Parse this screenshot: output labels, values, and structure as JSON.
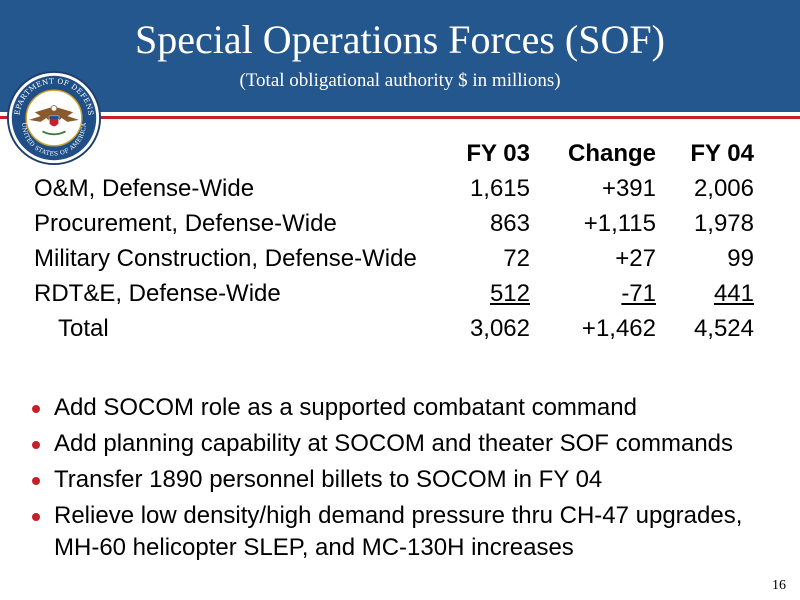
{
  "header": {
    "title": "Special Operations Forces (SOF)",
    "subtitle": "(Total obligational authority $ in millions)",
    "bg_color": "#25578f",
    "accent_line_color": "#c8202a"
  },
  "seal": {
    "icon": "department-of-defense-seal",
    "top_text": "DEPARTMENT OF DEFENSE",
    "bottom_text": "UNITED STATES OF AMERICA"
  },
  "table": {
    "columns": [
      "FY 03",
      "Change",
      "FY 04"
    ],
    "rows": [
      {
        "label": "O&M, Defense-Wide",
        "fy03": "1,615",
        "change": "+391",
        "fy04": "2,006"
      },
      {
        "label": "Procurement, Defense-Wide",
        "fy03": "863",
        "change": "+1,115",
        "fy04": "1,978"
      },
      {
        "label": "Military Construction, Defense-Wide",
        "fy03": "72",
        "change": "+27",
        "fy04": "99"
      },
      {
        "label": "RDT&E, Defense-Wide",
        "fy03": "512",
        "change": "-71",
        "fy04": "441"
      }
    ],
    "total": {
      "label": "Total",
      "fy03": "3,062",
      "change": "+1,462",
      "fy04": "4,524"
    }
  },
  "bullets": [
    "Add SOCOM role as a supported combatant command",
    "Add planning capability at SOCOM and theater SOF commands",
    "Transfer 1890 personnel billets to SOCOM in FY 04",
    "Relieve low density/high demand pressure thru CH-47 upgrades, MH-60 helicopter SLEP, and MC-130H increases"
  ],
  "bullet_color": "#c8202a",
  "page_number": "16"
}
